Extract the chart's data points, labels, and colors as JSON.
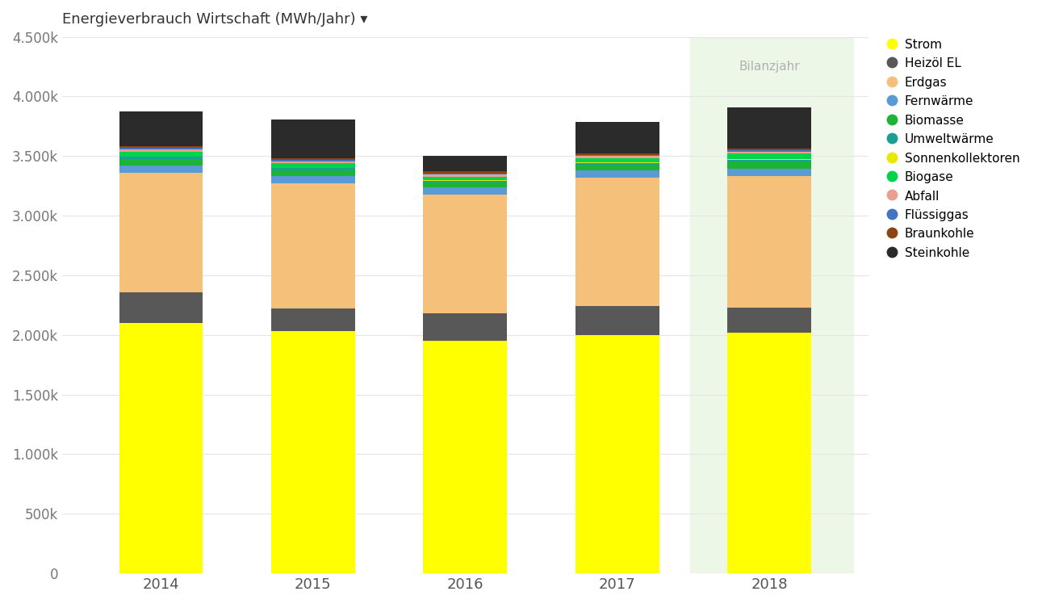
{
  "years": [
    "2014",
    "2015",
    "2016",
    "2017",
    "2018"
  ],
  "title": "Energieverbrauch Wirtschaft (MWh/Jahr) ▾",
  "highlight_year": "2018",
  "bilanzjahr_label": "Bilanzjahr",
  "segments": [
    {
      "label": "Strom",
      "color": "#ffff00",
      "values": [
        2100000,
        2030000,
        1950000,
        2000000,
        2020000
      ]
    },
    {
      "label": "Heizöl EL",
      "color": "#585858",
      "values": [
        260000,
        195000,
        230000,
        240000,
        210000
      ]
    },
    {
      "label": "Erdgas",
      "color": "#f5c07a",
      "values": [
        1000000,
        1050000,
        1000000,
        1080000,
        1100000
      ]
    },
    {
      "label": "Fernwärme",
      "color": "#5b9bd5",
      "values": [
        60000,
        60000,
        55000,
        60000,
        65000
      ]
    },
    {
      "label": "Biomasse",
      "color": "#1db336",
      "values": [
        55000,
        48000,
        42000,
        48000,
        58000
      ]
    },
    {
      "label": "Umweltwärme",
      "color": "#1a9e96",
      "values": [
        18000,
        15000,
        15000,
        16000,
        18000
      ]
    },
    {
      "label": "Sonnenkollektoren",
      "color": "#e8e800",
      "values": [
        4000,
        4000,
        4000,
        4000,
        4000
      ]
    },
    {
      "label": "Biogase",
      "color": "#00d44a",
      "values": [
        42000,
        38000,
        32000,
        36000,
        46000
      ]
    },
    {
      "label": "Abfall",
      "color": "#e8a090",
      "values": [
        20000,
        18000,
        18000,
        18000,
        18000
      ]
    },
    {
      "label": "Flüssiggas",
      "color": "#4472c4",
      "values": [
        12000,
        10000,
        10000,
        10000,
        10000
      ]
    },
    {
      "label": "Braunkohle",
      "color": "#8B4513",
      "values": [
        15000,
        12000,
        15000,
        12000,
        12000
      ]
    },
    {
      "label": "Steinkohle",
      "color": "#2b2b2b",
      "values": [
        290000,
        330000,
        130000,
        260000,
        350000
      ]
    }
  ],
  "ylim": [
    0,
    4500000
  ],
  "yticks": [
    0,
    500000,
    1000000,
    1500000,
    2000000,
    2500000,
    3000000,
    3500000,
    4000000,
    4500000
  ],
  "ytick_labels": [
    "0",
    "500k",
    "1.000k",
    "1.500k",
    "2.000k",
    "2.500k",
    "3.000k",
    "3.500k",
    "4.000k",
    "4.500k"
  ],
  "background_color": "#ffffff",
  "highlight_bg_color": "#edf7e8",
  "grid_color": "#e5e5e5",
  "legend_marker": "circle"
}
